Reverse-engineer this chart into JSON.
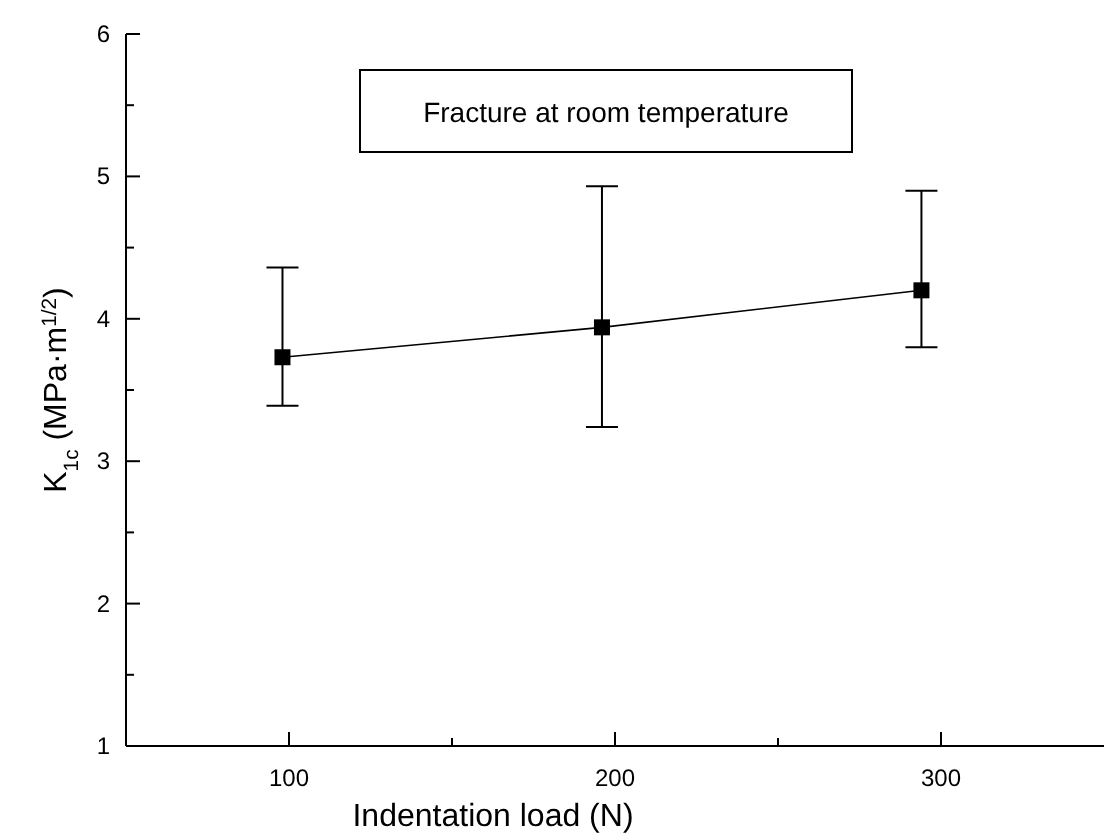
{
  "chart_data": {
    "type": "line",
    "xlabel": "Indentation load (N)",
    "ylabel": "K$_{1c}$ (MPa·m$^{1/2}$)",
    "annotations": [
      "Fracture at room temperature"
    ],
    "x": [
      98,
      196,
      294
    ],
    "series": [
      {
        "color": "#000000",
        "values": [
          3.73,
          3.94,
          4.2
        ],
        "errors": [
          [
            3.39,
            4.36
          ],
          [
            3.24,
            4.93
          ],
          [
            3.8,
            4.9
          ]
        ]
      }
    ],
    "marker": "square",
    "line_style": "solid",
    "xlim": [
      50,
      350
    ],
    "xticks": [
      100,
      {
        "value": 150,
        "label": null
      },
      200,
      {
        "value": 250,
        "label": null
      },
      300
    ],
    "ylim": [
      1,
      6
    ],
    "yticks": [
      1,
      {
        "value": 1.5,
        "label": null
      },
      2,
      {
        "value": 2.5,
        "label": null
      },
      3,
      {
        "value": 3.5,
        "label": null
      },
      4,
      {
        "value": 4.5,
        "label": null
      },
      5,
      {
        "value": 5.5,
        "label": null
      },
      6
    ]
  }
}
